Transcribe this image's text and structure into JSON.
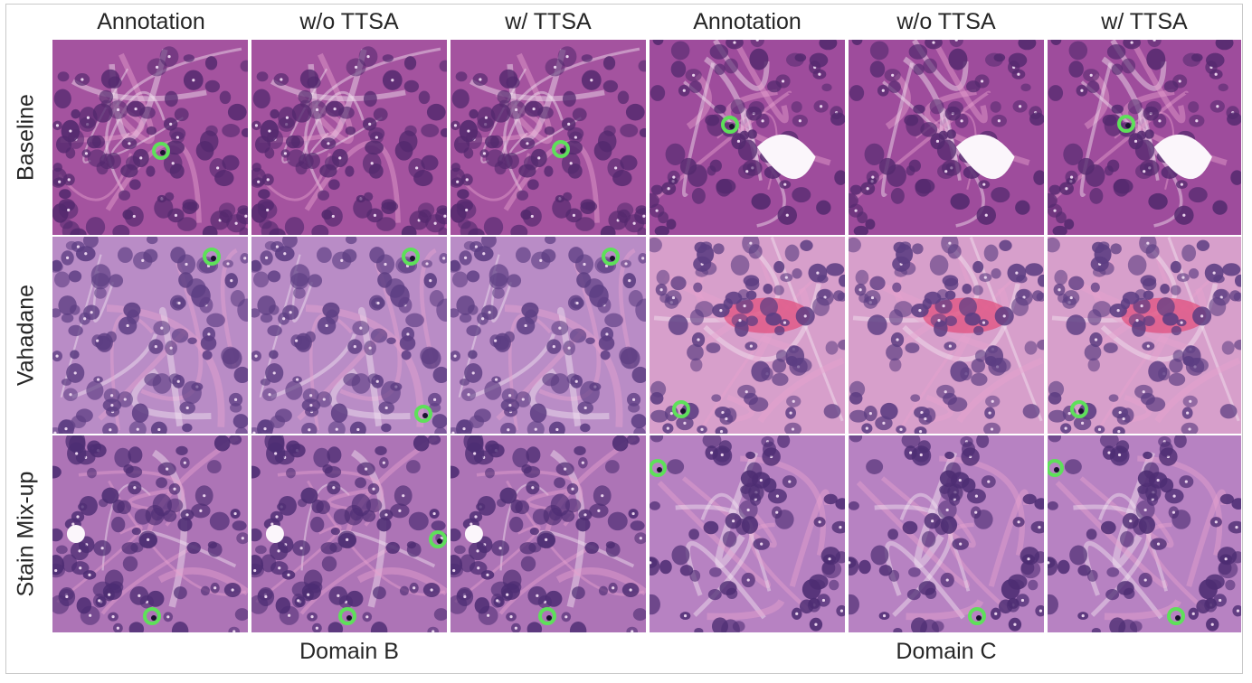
{
  "column_headers": [
    "Annotation",
    "w/o TTSA",
    "w/ TTSA",
    "Annotation",
    "w/o TTSA",
    "w/ TTSA"
  ],
  "row_headers": [
    "Baseline",
    "Vahadane",
    "Stain Mix-up"
  ],
  "domain_labels": [
    "Domain B",
    "Domain C"
  ],
  "colors": {
    "marker_ring": "#5ee05a",
    "nucleus": "#4a2568",
    "stroma_pink": "#e7a2cf",
    "red_cells": "#e0507f",
    "row_tints": [
      {
        "bg_b": "#a4539f",
        "bg_c": "#9e4c9c",
        "cell": "#53296e"
      },
      {
        "bg_b": "#b98cc6",
        "bg_c": "#d79fcb",
        "cell": "#5c3d82"
      },
      {
        "bg_b": "#ad74b6",
        "bg_c": "#b782c2",
        "cell": "#4d2d73"
      }
    ]
  },
  "tile_content": "H&E stained tissue patches; green ring markers indicate detected mitotic figures"
}
